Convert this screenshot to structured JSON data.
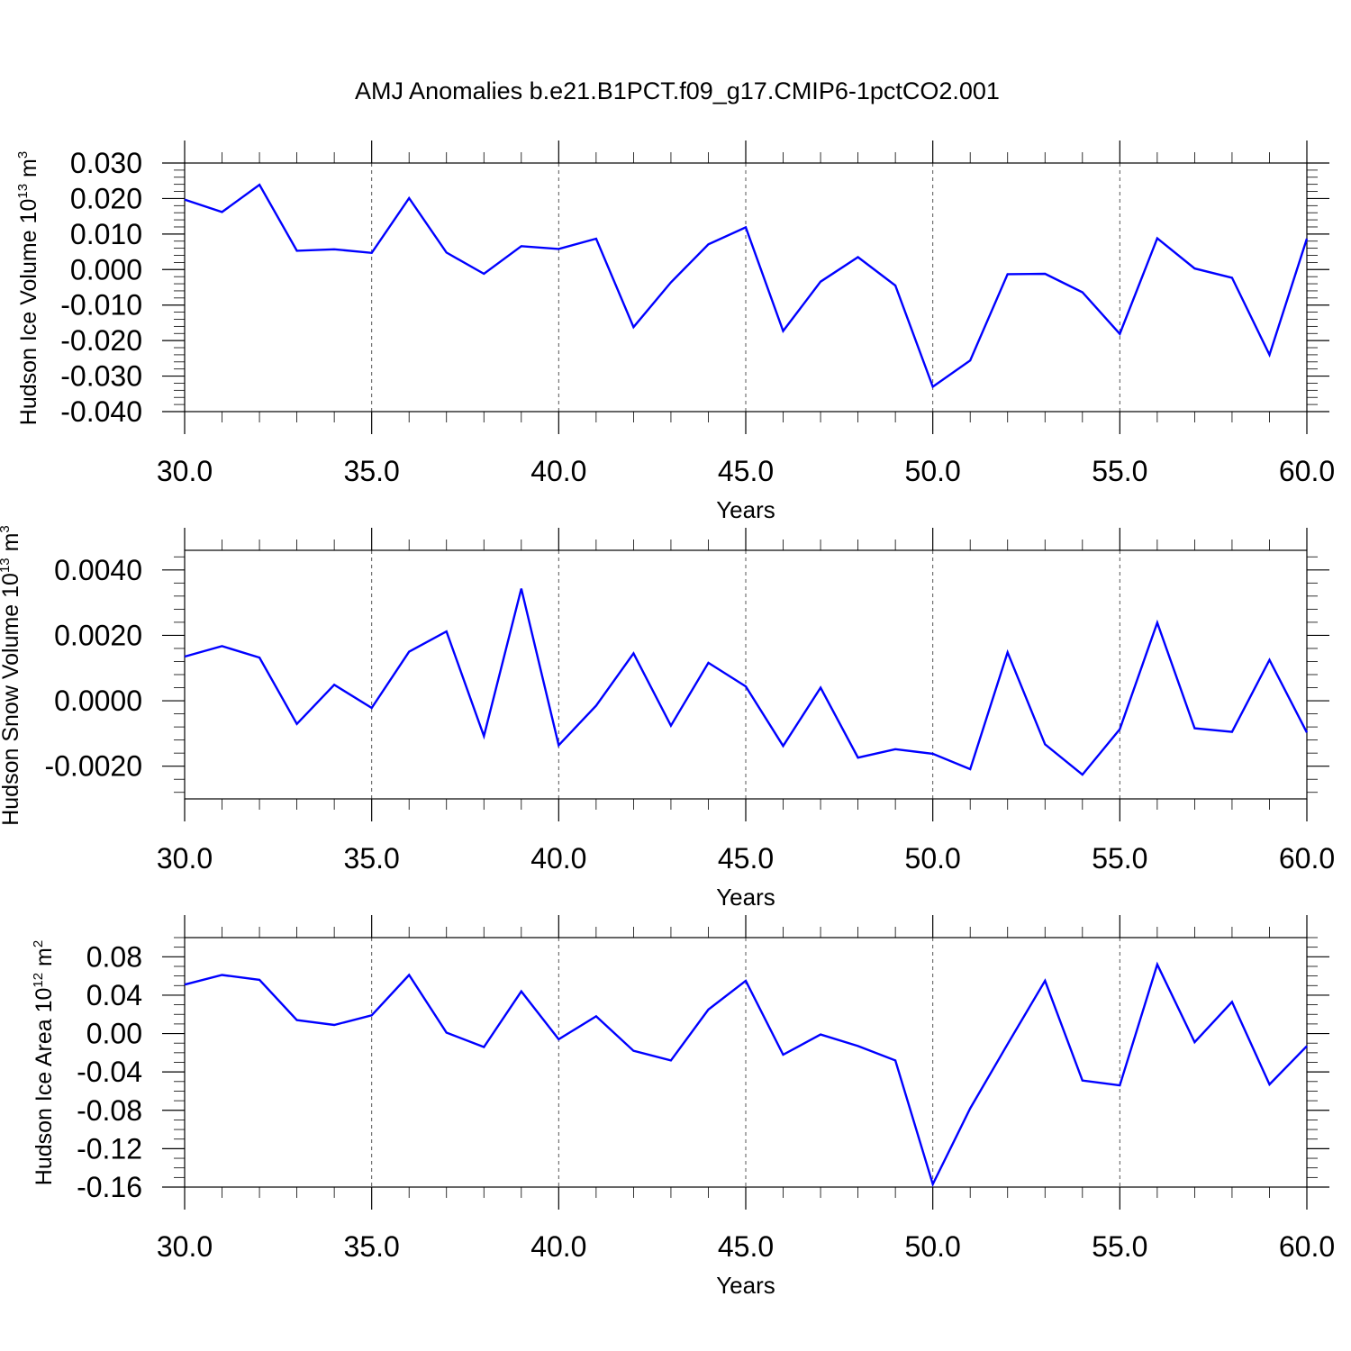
{
  "title": "AMJ Anomalies b.e21.B1PCT.f09_g17.CMIP6-1pctCO2.001",
  "colors": {
    "line": "#0000ff",
    "axes": "#000000",
    "grid": "#555555"
  },
  "chart_data": [
    {
      "type": "line",
      "ylabel": {
        "base": "Hudson Ice Volume 10",
        "exp": "13",
        "unit": " m",
        "unit_exp": "3"
      },
      "xlabel": "Years",
      "xlim": [
        30,
        60
      ],
      "ylim": [
        -0.04,
        0.03
      ],
      "xticks": [
        "30.0",
        "35.0",
        "40.0",
        "45.0",
        "50.0",
        "55.0",
        "60.0"
      ],
      "xtick_values": [
        30,
        35,
        40,
        45,
        50,
        55,
        60
      ],
      "yticks": [
        "0.030",
        "0.020",
        "0.010",
        "0.000",
        "-0.010",
        "-0.020",
        "-0.030",
        "-0.040"
      ],
      "ytick_values": [
        0.03,
        0.02,
        0.01,
        0.0,
        -0.01,
        -0.02,
        -0.03,
        -0.04
      ],
      "grid": "vertical dashed at x major ticks",
      "x": [
        30,
        31,
        32,
        33,
        34,
        35,
        36,
        37,
        38,
        39,
        40,
        41,
        42,
        43,
        44,
        45,
        46,
        47,
        48,
        49,
        50,
        51,
        52,
        53,
        54,
        55,
        56,
        57,
        58,
        59,
        60
      ],
      "values": [
        0.0197,
        0.0162,
        0.0239,
        0.0053,
        0.0057,
        0.0047,
        0.0201,
        0.0048,
        -0.0012,
        0.0066,
        0.0058,
        0.0087,
        -0.0162,
        -0.0036,
        0.0071,
        0.0119,
        -0.0173,
        -0.0034,
        0.0035,
        -0.0045,
        -0.033,
        -0.0256,
        -0.0013,
        -0.0012,
        -0.0064,
        -0.0181,
        0.0088,
        0.0003,
        -0.0023,
        -0.024,
        0.0087
      ]
    },
    {
      "type": "line",
      "ylabel": {
        "base": "Hudson Snow Volume 10",
        "exp": "13",
        "unit": " m",
        "unit_exp": "3"
      },
      "xlabel": "Years",
      "xlim": [
        30,
        60
      ],
      "ylim": [
        -0.003,
        0.0046
      ],
      "xticks": [
        "30.0",
        "35.0",
        "40.0",
        "45.0",
        "50.0",
        "55.0",
        "60.0"
      ],
      "xtick_values": [
        30,
        35,
        40,
        45,
        50,
        55,
        60
      ],
      "yticks": [
        "0.0040",
        "0.0020",
        "0.0000",
        "-0.0020"
      ],
      "ytick_values": [
        0.004,
        0.002,
        0.0,
        -0.002
      ],
      "grid": "vertical dashed at x major ticks",
      "x": [
        30,
        31,
        32,
        33,
        34,
        35,
        36,
        37,
        38,
        39,
        40,
        41,
        42,
        43,
        44,
        45,
        46,
        47,
        48,
        49,
        50,
        51,
        52,
        53,
        54,
        55,
        56,
        57,
        58,
        59,
        60
      ],
      "values": [
        0.00135,
        0.00167,
        0.00132,
        -0.00071,
        0.00049,
        -0.00022,
        0.0015,
        0.00212,
        -0.00108,
        0.00343,
        -0.00136,
        -0.00015,
        0.00145,
        -0.00076,
        0.00116,
        0.00044,
        -0.00138,
        0.0004,
        -0.00174,
        -0.00148,
        -0.00162,
        -0.00209,
        0.00148,
        -0.00133,
        -0.00226,
        -0.00087,
        0.00239,
        -0.00084,
        -0.00095,
        0.00125,
        -0.00097
      ]
    },
    {
      "type": "line",
      "ylabel": {
        "base": "Hudson Ice Area 10",
        "exp": "12",
        "unit": " m",
        "unit_exp": "2"
      },
      "xlabel": "Years",
      "xlim": [
        30,
        60
      ],
      "ylim": [
        -0.16,
        0.1
      ],
      "xticks": [
        "30.0",
        "35.0",
        "40.0",
        "45.0",
        "50.0",
        "55.0",
        "60.0"
      ],
      "xtick_values": [
        30,
        35,
        40,
        45,
        50,
        55,
        60
      ],
      "yticks": [
        "0.08",
        "0.04",
        "0.00",
        "-0.04",
        "-0.08",
        "-0.12",
        "-0.16"
      ],
      "ytick_values": [
        0.08,
        0.04,
        0.0,
        -0.04,
        -0.08,
        -0.12,
        -0.16
      ],
      "grid": "vertical dashed at x major ticks",
      "x": [
        30,
        31,
        32,
        33,
        34,
        35,
        36,
        37,
        38,
        39,
        40,
        41,
        42,
        43,
        44,
        45,
        46,
        47,
        48,
        49,
        50,
        51,
        52,
        53,
        54,
        55,
        56,
        57,
        58,
        59,
        60
      ],
      "values": [
        0.051,
        0.061,
        0.056,
        0.014,
        0.009,
        0.019,
        0.061,
        0.001,
        -0.014,
        0.044,
        -0.006,
        0.018,
        -0.018,
        -0.028,
        0.025,
        0.055,
        -0.022,
        -0.001,
        -0.013,
        -0.028,
        -0.157,
        -0.078,
        -0.011,
        0.055,
        -0.049,
        -0.054,
        0.072,
        -0.009,
        0.033,
        -0.053,
        -0.013
      ]
    }
  ]
}
